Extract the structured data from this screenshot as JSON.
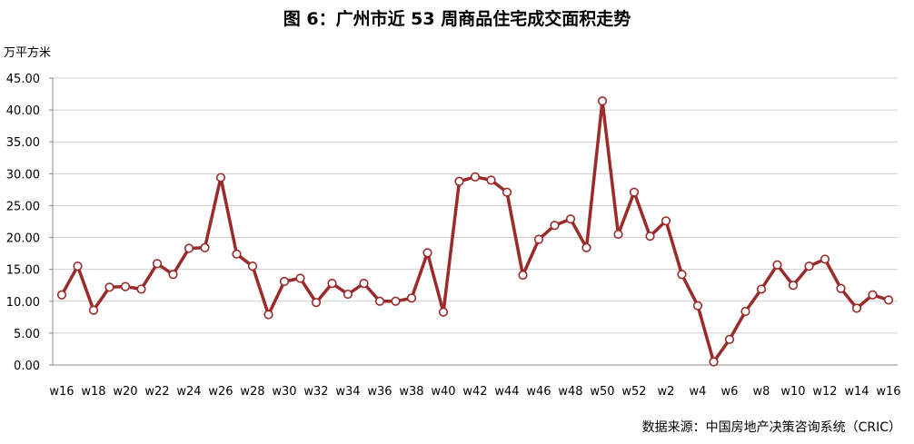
{
  "title": "图 6：广州市近 53 周商品住宅成交面积走势",
  "unit_label": "万平方米",
  "source": "数据来源：中国房地产决策咨询系统（CRIC）",
  "colors": {
    "line": "#9b2a2a",
    "marker_fill": "#ffffff",
    "grid": "#d0d0d0",
    "axis": "#888888"
  },
  "chart_data": {
    "type": "line",
    "title": "图 6：广州市近 53 周商品住宅成交面积走势",
    "ylabel": "万平方米",
    "xlabel": "",
    "ylim": [
      0,
      45
    ],
    "yticks": [
      "0.00",
      "5.00",
      "10.00",
      "15.00",
      "20.00",
      "25.00",
      "30.00",
      "35.00",
      "40.00",
      "45.00"
    ],
    "grid": true,
    "x": [
      "w16",
      "w17",
      "w18",
      "w19",
      "w20",
      "w21",
      "w22",
      "w23",
      "w24",
      "w25",
      "w26",
      "w27",
      "w28",
      "w29",
      "w30",
      "w31",
      "w32",
      "w33",
      "w34",
      "w35",
      "w36",
      "w37",
      "w38",
      "w39",
      "w40",
      "w41",
      "w42",
      "w43",
      "w44",
      "w45",
      "w46",
      "w47",
      "w48",
      "w49",
      "w50",
      "w51",
      "w52",
      "w1",
      "w2",
      "w3",
      "w4",
      "w5",
      "w6",
      "w7",
      "w8",
      "w9",
      "w10",
      "w11",
      "w12",
      "w13",
      "w14",
      "w15",
      "w16"
    ],
    "x_tick_labels": [
      "w16",
      "",
      "w18",
      "",
      "w20",
      "",
      "w22",
      "",
      "w24",
      "",
      "w26",
      "",
      "w28",
      "",
      "w30",
      "",
      "w32",
      "",
      "w34",
      "",
      "w36",
      "",
      "w38",
      "",
      "w40",
      "",
      "w42",
      "",
      "w44",
      "",
      "w46",
      "",
      "w48",
      "",
      "w50",
      "",
      "w52",
      "",
      "w2",
      "",
      "w4",
      "",
      "w6",
      "",
      "w8",
      "",
      "w10",
      "",
      "w12",
      "",
      "w14",
      "",
      "w16"
    ],
    "series": [
      {
        "values": [
          11.0,
          15.5,
          8.6,
          12.2,
          12.3,
          11.9,
          15.9,
          14.2,
          18.3,
          18.4,
          29.4,
          17.4,
          15.5,
          7.9,
          13.1,
          13.6,
          9.8,
          12.8,
          11.1,
          12.8,
          10.0,
          10.0,
          10.5,
          17.6,
          8.3,
          28.8,
          29.5,
          29.0,
          27.1,
          14.1,
          19.7,
          21.9,
          22.9,
          18.4,
          41.4,
          20.5,
          27.1,
          20.2,
          22.6,
          14.2,
          9.3,
          0.5,
          4.0,
          8.4,
          11.9,
          15.7,
          12.5,
          15.5,
          16.6,
          12.0,
          8.9,
          11.0,
          10.2
        ]
      }
    ]
  }
}
